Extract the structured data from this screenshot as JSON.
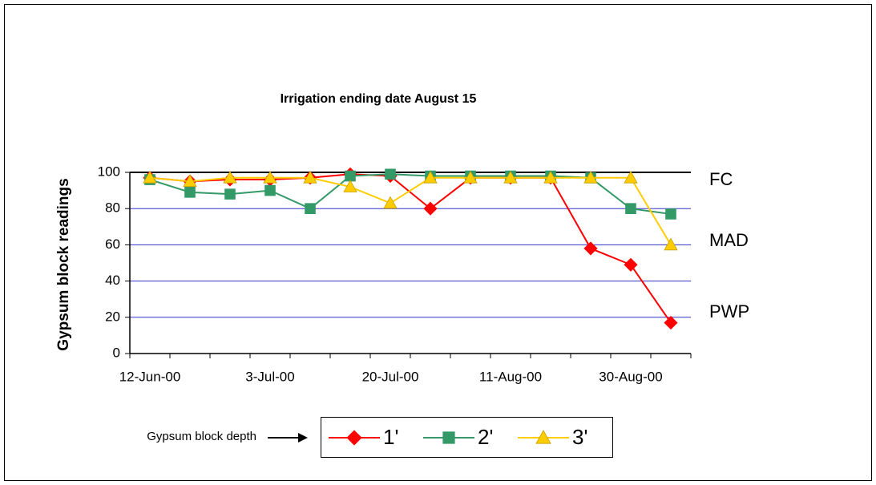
{
  "chart_data": {
    "type": "line",
    "title": "Irrigation ending date August 15",
    "y_label": "Gypsum block readings",
    "categories": [
      "12-Jun-00",
      null,
      null,
      "3-Jul-00",
      null,
      null,
      "20-Jul-00",
      null,
      null,
      "11-Aug-00",
      null,
      null,
      "30-Aug-00",
      null
    ],
    "series": [
      {
        "name": "1'",
        "color": "#ff0000",
        "marker": "diamond",
        "values": [
          97,
          95,
          96,
          96,
          97,
          99,
          98,
          80,
          97,
          97,
          97,
          58,
          49,
          17
        ]
      },
      {
        "name": "2'",
        "color": "#339966",
        "marker": "square",
        "values": [
          96,
          89,
          88,
          90,
          80,
          98,
          99,
          98,
          98,
          98,
          98,
          97,
          80,
          77
        ]
      },
      {
        "name": "3'",
        "color": "#ffcc00",
        "marker": "triangle",
        "values": [
          97,
          95,
          97,
          97,
          97,
          92,
          83,
          97,
          97,
          97,
          97,
          97,
          97,
          60
        ]
      }
    ],
    "ylim": [
      0,
      100
    ],
    "yticks": [
      0,
      20,
      40,
      60,
      80,
      100
    ],
    "grid": true,
    "annotations": [
      "FC",
      "MAD",
      "PWP"
    ],
    "legend_title": "Gypsum block depth"
  }
}
